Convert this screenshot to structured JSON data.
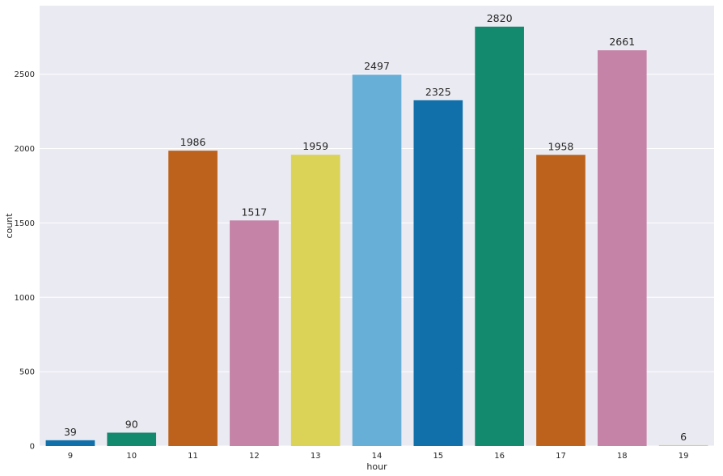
{
  "chart_data": {
    "type": "bar",
    "title": "",
    "xlabel": "hour",
    "ylabel": "count",
    "categories": [
      "9",
      "10",
      "11",
      "12",
      "13",
      "14",
      "15",
      "16",
      "17",
      "18",
      "19"
    ],
    "values": [
      39,
      90,
      1986,
      1517,
      1959,
      2497,
      2325,
      2820,
      1958,
      2661,
      6
    ],
    "data_labels": [
      "39",
      "90",
      "1986",
      "1517",
      "1959",
      "2497",
      "2325",
      "2820",
      "1958",
      "2661",
      "6"
    ],
    "bar_colors": [
      "#1170aa",
      "#138a6d",
      "#bd621c",
      "#c584a7",
      "#dbd358",
      "#68afd8",
      "#1170aa",
      "#138a6d",
      "#bd621c",
      "#c584a7",
      "#dbd358"
    ],
    "ylim": [
      0,
      2961
    ],
    "yticks": [
      0,
      500,
      1000,
      1500,
      2000,
      2500
    ],
    "ytick_labels": [
      "0",
      "500",
      "1000",
      "1500",
      "2000",
      "2500"
    ],
    "grid": true,
    "background": "#eaeaf2",
    "gridline_color": "#ffffff"
  }
}
